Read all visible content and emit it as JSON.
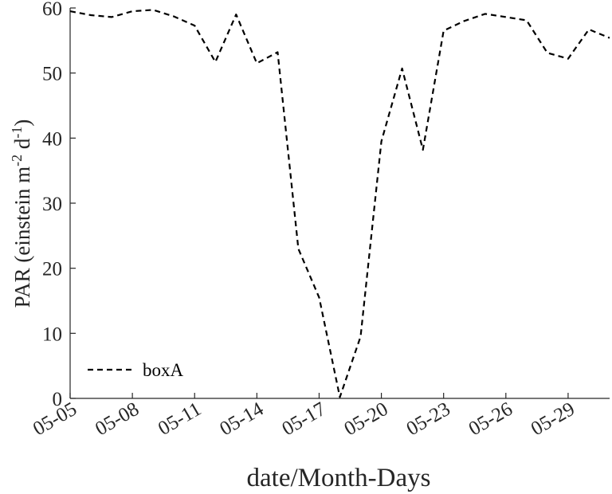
{
  "chart_data": {
    "type": "line",
    "xlabel": "date/Month-Days",
    "ylabel": "PAR (einstein m-2 d-1)",
    "ylabel_parts": {
      "base": "PAR (einstein m",
      "sup1": "-2",
      "mid": " d",
      "sup2": "-1",
      "end": ")"
    },
    "ylim": [
      0,
      60
    ],
    "xlim": [
      "05-05",
      "05-31"
    ],
    "y_ticks": [
      0,
      10,
      20,
      30,
      40,
      50,
      60
    ],
    "x_ticks": [
      "05-05",
      "05-08",
      "05-11",
      "05-14",
      "05-17",
      "05-20",
      "05-23",
      "05-26",
      "05-29"
    ],
    "grid": false,
    "legend_position": "bottom-left",
    "series": [
      {
        "name": "boxA",
        "style": "dashed",
        "color": "#000000",
        "x": [
          "05-05",
          "05-06",
          "05-07",
          "05-08",
          "05-09",
          "05-10",
          "05-11",
          "05-12",
          "05-13",
          "05-14",
          "05-15",
          "05-16",
          "05-17",
          "05-18",
          "05-19",
          "05-20",
          "05-21",
          "05-22",
          "05-23",
          "05-24",
          "05-25",
          "05-26",
          "05-27",
          "05-28",
          "05-29",
          "05-30",
          "05-31"
        ],
        "values": [
          59.5,
          58.9,
          58.6,
          59.5,
          59.7,
          58.7,
          57.3,
          51.7,
          59.0,
          51.5,
          53.2,
          23.0,
          15.5,
          0.2,
          9.5,
          39.5,
          50.7,
          38.2,
          56.5,
          58.0,
          59.1,
          58.6,
          58.1,
          53.1,
          52.2,
          56.7,
          55.4
        ]
      }
    ]
  }
}
